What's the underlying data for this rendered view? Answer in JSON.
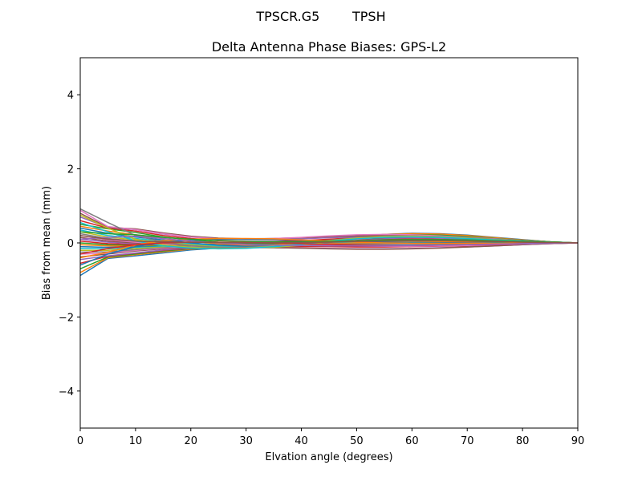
{
  "suptitle": "TPSCR.G5        TPSH",
  "chart_data": {
    "type": "line",
    "title": "Delta Antenna Phase Biases: GPS-L2",
    "xlabel": "Elvation angle (degrees)",
    "ylabel": "Bias from mean (mm)",
    "xlim": [
      0,
      90
    ],
    "ylim": [
      -5,
      5
    ],
    "xticks": [
      0,
      10,
      20,
      30,
      40,
      50,
      60,
      70,
      80,
      90
    ],
    "yticks": [
      -4,
      -2,
      0,
      2,
      4
    ],
    "xtick_labels": [
      "0",
      "10",
      "20",
      "30",
      "40",
      "50",
      "60",
      "70",
      "80",
      "90"
    ],
    "ytick_labels": [
      "−4",
      "−2",
      "0",
      "2",
      "4"
    ],
    "grid": false,
    "legend": "none",
    "x": [
      0,
      5,
      10,
      15,
      20,
      25,
      30,
      35,
      40,
      45,
      50,
      55,
      60,
      65,
      70,
      75,
      80,
      85,
      90
    ],
    "color_cycle": [
      "#1f77b4",
      "#ff7f0e",
      "#2ca02c",
      "#d62728",
      "#9467bd",
      "#8c564b",
      "#e377c2",
      "#7f7f7f",
      "#bcbd22",
      "#17becf"
    ],
    "series": [
      {
        "values": [
          -0.88,
          -0.42,
          -0.35,
          -0.27,
          -0.19,
          -0.14,
          -0.1,
          -0.07,
          -0.04,
          -0.02,
          -0.01,
          -0.01,
          -0.01,
          -0.01,
          -0.01,
          -0.01,
          0.0,
          0.0,
          0.0
        ]
      },
      {
        "values": [
          -0.8,
          -0.4,
          -0.32,
          -0.24,
          -0.17,
          -0.12,
          -0.09,
          -0.06,
          -0.03,
          -0.01,
          0.0,
          0.0,
          0.0,
          0.0,
          0.0,
          0.0,
          0.0,
          0.0,
          0.0
        ]
      },
      {
        "values": [
          -0.7,
          -0.38,
          -0.3,
          -0.22,
          -0.16,
          -0.12,
          -0.1,
          -0.08,
          -0.06,
          -0.05,
          -0.05,
          -0.05,
          -0.05,
          -0.04,
          -0.04,
          -0.03,
          -0.02,
          -0.01,
          0.0
        ]
      },
      {
        "values": [
          -0.55,
          -0.36,
          -0.28,
          -0.2,
          -0.15,
          -0.12,
          -0.11,
          -0.1,
          -0.1,
          -0.1,
          -0.11,
          -0.11,
          -0.1,
          -0.09,
          -0.08,
          -0.06,
          -0.04,
          -0.02,
          0.0
        ]
      },
      {
        "values": [
          -0.45,
          -0.35,
          -0.27,
          -0.19,
          -0.14,
          -0.13,
          -0.13,
          -0.13,
          -0.14,
          -0.15,
          -0.16,
          -0.16,
          -0.15,
          -0.13,
          -0.11,
          -0.08,
          -0.05,
          -0.02,
          0.0
        ]
      },
      {
        "values": [
          -0.38,
          -0.3,
          -0.22,
          -0.16,
          -0.13,
          -0.12,
          -0.12,
          -0.13,
          -0.14,
          -0.16,
          -0.17,
          -0.17,
          -0.16,
          -0.14,
          -0.11,
          -0.08,
          -0.05,
          -0.02,
          0.0
        ]
      },
      {
        "values": [
          -0.3,
          -0.28,
          -0.2,
          -0.14,
          -0.1,
          -0.08,
          -0.07,
          -0.06,
          -0.06,
          -0.07,
          -0.08,
          -0.09,
          -0.09,
          -0.08,
          -0.07,
          -0.05,
          -0.03,
          -0.01,
          0.0
        ]
      },
      {
        "values": [
          -0.25,
          -0.24,
          -0.18,
          -0.12,
          -0.08,
          -0.05,
          -0.03,
          -0.02,
          -0.02,
          -0.03,
          -0.04,
          -0.05,
          -0.05,
          -0.05,
          -0.04,
          -0.03,
          -0.02,
          -0.01,
          0.0
        ]
      },
      {
        "values": [
          -0.2,
          -0.2,
          -0.15,
          -0.1,
          -0.05,
          -0.02,
          0.01,
          0.03,
          0.04,
          0.04,
          0.03,
          0.02,
          0.01,
          0.0,
          0.0,
          0.0,
          0.0,
          0.0,
          0.0
        ]
      },
      {
        "values": [
          -0.15,
          -0.16,
          -0.12,
          -0.08,
          -0.05,
          -0.03,
          -0.01,
          0.01,
          0.02,
          0.02,
          0.02,
          0.01,
          0.01,
          0.0,
          0.0,
          0.0,
          0.0,
          0.0,
          0.0
        ]
      },
      {
        "values": [
          -0.1,
          -0.12,
          -0.1,
          -0.07,
          -0.05,
          -0.04,
          -0.02,
          0.0,
          0.02,
          0.03,
          0.04,
          0.04,
          0.04,
          0.03,
          0.02,
          0.01,
          0.01,
          0.0,
          0.0
        ]
      },
      {
        "values": [
          -0.05,
          -0.08,
          -0.08,
          -0.06,
          -0.05,
          -0.05,
          -0.04,
          -0.02,
          0.0,
          0.02,
          0.04,
          0.05,
          0.05,
          0.04,
          0.03,
          0.02,
          0.01,
          0.0,
          0.0
        ]
      },
      {
        "values": [
          0.0,
          -0.05,
          -0.06,
          -0.06,
          -0.06,
          -0.06,
          -0.05,
          -0.03,
          0.0,
          0.03,
          0.06,
          0.08,
          0.08,
          0.07,
          0.05,
          0.03,
          0.02,
          0.01,
          0.0
        ]
      },
      {
        "values": [
          0.05,
          -0.02,
          -0.04,
          -0.05,
          -0.06,
          -0.07,
          -0.06,
          -0.04,
          -0.01,
          0.03,
          0.07,
          0.1,
          0.11,
          0.1,
          0.08,
          0.05,
          0.03,
          0.01,
          0.0
        ]
      },
      {
        "values": [
          0.1,
          0.02,
          -0.02,
          -0.04,
          -0.06,
          -0.08,
          -0.08,
          -0.06,
          -0.02,
          0.03,
          0.08,
          0.12,
          0.14,
          0.13,
          0.1,
          0.07,
          0.04,
          0.02,
          0.0
        ]
      },
      {
        "values": [
          0.15,
          0.05,
          0.0,
          -0.03,
          -0.06,
          -0.09,
          -0.1,
          -0.08,
          -0.04,
          0.02,
          0.09,
          0.14,
          0.16,
          0.15,
          0.12,
          0.08,
          0.05,
          0.02,
          0.0
        ]
      },
      {
        "values": [
          0.2,
          0.08,
          0.02,
          -0.02,
          -0.06,
          -0.1,
          -0.12,
          -0.1,
          -0.05,
          0.02,
          0.1,
          0.16,
          0.19,
          0.18,
          0.15,
          0.1,
          0.06,
          0.02,
          0.0
        ]
      },
      {
        "values": [
          0.25,
          0.12,
          0.05,
          0.0,
          -0.05,
          -0.1,
          -0.13,
          -0.12,
          -0.07,
          0.01,
          0.11,
          0.18,
          0.22,
          0.21,
          0.17,
          0.12,
          0.07,
          0.03,
          0.0
        ]
      },
      {
        "values": [
          0.3,
          0.16,
          0.08,
          0.02,
          -0.04,
          -0.1,
          -0.13,
          -0.12,
          -0.06,
          0.03,
          0.13,
          0.2,
          0.24,
          0.23,
          0.19,
          0.13,
          0.08,
          0.03,
          0.0
        ]
      },
      {
        "values": [
          0.35,
          0.2,
          0.12,
          0.05,
          -0.02,
          -0.08,
          -0.11,
          -0.1,
          -0.04,
          0.05,
          0.15,
          0.22,
          0.25,
          0.24,
          0.2,
          0.14,
          0.08,
          0.03,
          0.0
        ]
      },
      {
        "values": [
          0.4,
          0.26,
          0.16,
          0.08,
          0.0,
          -0.06,
          -0.09,
          -0.08,
          -0.02,
          0.07,
          0.16,
          0.23,
          0.26,
          0.25,
          0.21,
          0.15,
          0.09,
          0.03,
          0.0
        ]
      },
      {
        "values": [
          0.45,
          0.32,
          0.22,
          0.12,
          0.04,
          -0.02,
          -0.06,
          -0.05,
          0.0,
          0.08,
          0.17,
          0.23,
          0.25,
          0.24,
          0.2,
          0.14,
          0.08,
          0.03,
          0.0
        ]
      },
      {
        "values": [
          0.5,
          0.38,
          0.28,
          0.16,
          0.08,
          0.02,
          -0.02,
          -0.02,
          0.02,
          0.08,
          0.15,
          0.2,
          0.22,
          0.21,
          0.17,
          0.12,
          0.07,
          0.03,
          0.0
        ]
      },
      {
        "values": [
          0.6,
          0.4,
          0.32,
          0.2,
          0.12,
          0.07,
          0.04,
          0.04,
          0.06,
          0.1,
          0.14,
          0.17,
          0.18,
          0.17,
          0.14,
          0.1,
          0.06,
          0.02,
          0.0
        ]
      },
      {
        "values": [
          0.7,
          0.42,
          0.36,
          0.24,
          0.16,
          0.11,
          0.09,
          0.09,
          0.11,
          0.14,
          0.16,
          0.17,
          0.17,
          0.15,
          0.12,
          0.09,
          0.05,
          0.02,
          0.0
        ]
      },
      {
        "values": [
          0.8,
          0.42,
          0.38,
          0.27,
          0.18,
          0.13,
          0.11,
          0.12,
          0.14,
          0.17,
          0.19,
          0.2,
          0.19,
          0.17,
          0.14,
          0.1,
          0.06,
          0.02,
          0.0
        ]
      },
      {
        "values": [
          0.88,
          0.44,
          0.36,
          0.25,
          0.16,
          0.11,
          0.1,
          0.12,
          0.15,
          0.19,
          0.22,
          0.23,
          0.22,
          0.19,
          0.15,
          0.11,
          0.06,
          0.02,
          0.0
        ]
      },
      {
        "values": [
          0.92,
          0.55,
          0.2,
          0.02,
          -0.08,
          -0.12,
          -0.12,
          -0.08,
          -0.01,
          0.07,
          0.14,
          0.18,
          0.19,
          0.17,
          0.14,
          0.1,
          0.06,
          0.02,
          0.0
        ]
      },
      {
        "values": [
          0.75,
          0.4,
          0.1,
          -0.05,
          -0.12,
          -0.15,
          -0.14,
          -0.09,
          -0.02,
          0.06,
          0.13,
          0.17,
          0.18,
          0.16,
          0.13,
          0.09,
          0.05,
          0.02,
          0.0
        ]
      },
      {
        "values": [
          0.55,
          0.3,
          0.05,
          -0.08,
          -0.14,
          -0.16,
          -0.15,
          -0.1,
          -0.03,
          0.05,
          0.11,
          0.15,
          0.16,
          0.15,
          0.12,
          0.08,
          0.05,
          0.02,
          0.0
        ]
      },
      {
        "values": [
          -0.6,
          -0.3,
          -0.1,
          0.02,
          0.08,
          0.1,
          0.1,
          0.09,
          0.07,
          0.05,
          0.03,
          0.01,
          0.0,
          0.0,
          0.0,
          0.0,
          0.0,
          0.0,
          0.0
        ]
      },
      {
        "values": [
          -0.4,
          -0.25,
          -0.05,
          0.06,
          0.1,
          0.12,
          0.12,
          0.11,
          0.08,
          0.05,
          0.02,
          0.0,
          -0.01,
          -0.01,
          -0.01,
          -0.01,
          0.0,
          0.0,
          0.0
        ]
      },
      {
        "values": [
          0.3,
          0.25,
          0.22,
          0.15,
          0.1,
          0.06,
          0.04,
          0.03,
          0.03,
          0.04,
          0.06,
          0.08,
          0.09,
          0.09,
          0.08,
          0.06,
          0.04,
          0.02,
          0.0
        ]
      },
      {
        "values": [
          -0.3,
          -0.15,
          -0.05,
          0.0,
          0.02,
          0.02,
          0.01,
          0.0,
          -0.02,
          -0.04,
          -0.06,
          -0.07,
          -0.07,
          -0.06,
          -0.05,
          -0.04,
          -0.02,
          -0.01,
          0.0
        ]
      },
      {
        "values": [
          0.1,
          0.15,
          0.18,
          0.12,
          0.05,
          0.0,
          -0.04,
          -0.06,
          -0.07,
          -0.08,
          -0.08,
          -0.08,
          -0.07,
          -0.06,
          -0.05,
          -0.03,
          -0.02,
          -0.01,
          0.0
        ]
      },
      {
        "values": [
          0.2,
          0.1,
          0.05,
          0.03,
          0.02,
          0.01,
          0.0,
          0.0,
          0.01,
          0.02,
          0.04,
          0.05,
          0.06,
          0.06,
          0.05,
          0.04,
          0.02,
          0.01,
          0.0
        ]
      }
    ]
  }
}
